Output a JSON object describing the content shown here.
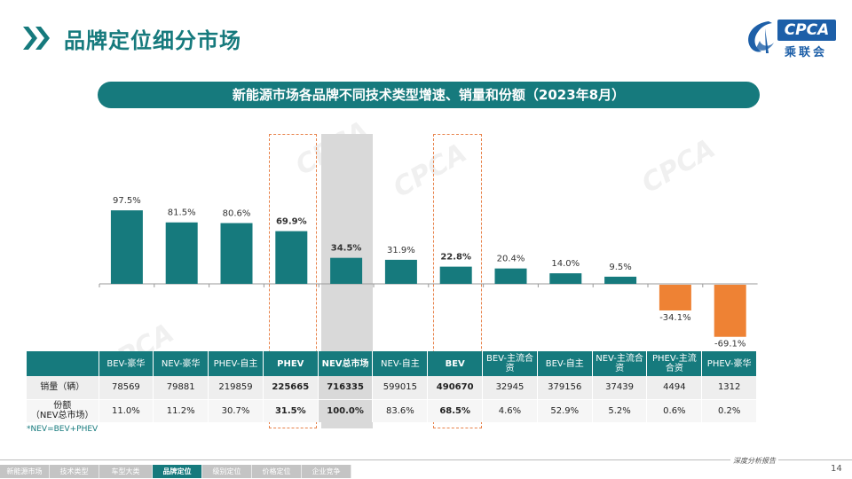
{
  "header": {
    "title": "品牌定位细分市场",
    "logo_text": "CPCA",
    "logo_cn": "乘联会"
  },
  "subtitle": "新能源市场各品牌不同技术类型增速、销量和份额（2023年8月）",
  "colors": {
    "primary": "#167a7d",
    "negative": "#ee8234",
    "highlight_border": "#e8824a",
    "total_shade": "#d9d9d9"
  },
  "chart_data": {
    "type": "bar",
    "categories": [
      "BEV-豪华",
      "NEV-豪华",
      "PHEV-自主",
      "PHEV",
      "NEV总市场",
      "NEV-自主",
      "BEV",
      "BEV-主流合资",
      "BEV-自主",
      "NEV-主流合资",
      "PHEV-主流合资",
      "PHEV-豪华"
    ],
    "values": [
      97.5,
      81.5,
      80.6,
      69.9,
      34.5,
      31.9,
      22.8,
      20.4,
      14.0,
      9.5,
      -34.1,
      -69.1
    ],
    "value_labels": [
      "97.5%",
      "81.5%",
      "80.6%",
      "69.9%",
      "34.5%",
      "31.9%",
      "22.8%",
      "20.4%",
      "14.0%",
      "9.5%",
      "-34.1%",
      "-69.1%"
    ],
    "bold_labels": [
      false,
      false,
      false,
      true,
      true,
      false,
      true,
      false,
      false,
      false,
      false,
      false
    ],
    "highlighted": [
      "PHEV",
      "BEV"
    ],
    "shaded": [
      "NEV总市场"
    ],
    "title": "",
    "xlabel": "",
    "ylabel": "",
    "grid": false
  },
  "table": {
    "rows": [
      {
        "label": "销量（辆）",
        "values": [
          "78569",
          "79881",
          "219859",
          "225665",
          "716335",
          "599015",
          "490670",
          "32945",
          "379156",
          "37439",
          "4494",
          "1312"
        ]
      },
      {
        "label": "份额\n（NEV总市场）",
        "values": [
          "11.0%",
          "11.2%",
          "30.7%",
          "31.5%",
          "100.0%",
          "83.6%",
          "68.5%",
          "4.6%",
          "52.9%",
          "5.2%",
          "0.6%",
          "0.2%"
        ]
      }
    ]
  },
  "footnote": "*NEV=BEV+PHEV",
  "footer": {
    "tagline": "深度分析报告",
    "page_number": "14",
    "tabs": [
      "新能源市场",
      "技术类型",
      "车型大类",
      "品牌定位",
      "级别定位",
      "价格定位",
      "企业竞争"
    ],
    "active_tab": "品牌定位"
  }
}
